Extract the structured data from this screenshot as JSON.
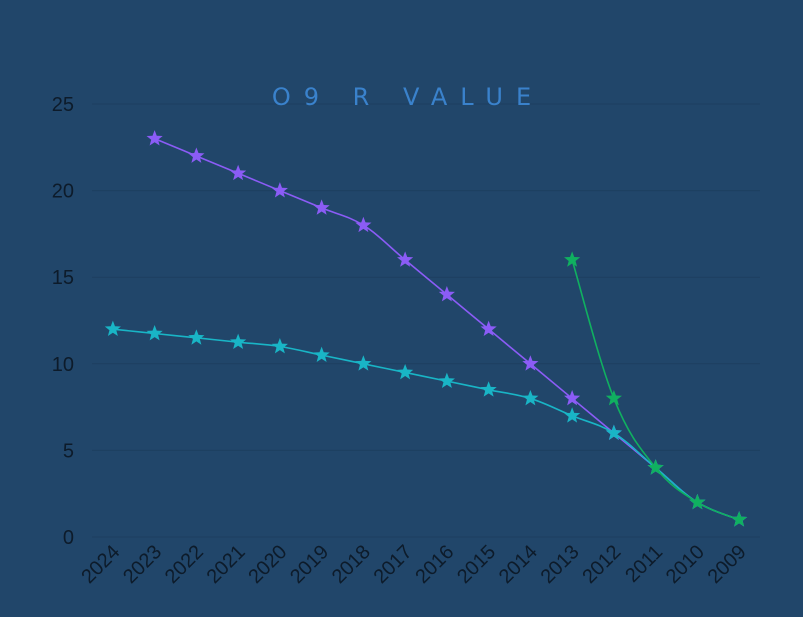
{
  "chart_data": {
    "type": "line",
    "title": "O9 R VALUE",
    "xlabel": "",
    "ylabel": "",
    "categories": [
      "2024",
      "2023",
      "2022",
      "2021",
      "2020",
      "2019",
      "2018",
      "2017",
      "2016",
      "2015",
      "2014",
      "2013",
      "2012",
      "2011",
      "2010",
      "2009"
    ],
    "ylim": [
      0,
      25
    ],
    "yticks": [
      0,
      5,
      10,
      15,
      20,
      25
    ],
    "grid": true,
    "legend": "none",
    "marker": "star",
    "series": [
      {
        "color": "#8b5cf6",
        "values": [
          null,
          23,
          22,
          21,
          20,
          19,
          18,
          16,
          14,
          12,
          10,
          8,
          6,
          4,
          2,
          1
        ]
      },
      {
        "color": "#19b5c6",
        "values": [
          12,
          11.75,
          11.5,
          11.25,
          11,
          10.5,
          10,
          9.5,
          9,
          8.5,
          8,
          7,
          6,
          4,
          2,
          1
        ]
      },
      {
        "color": "#10b060",
        "values": [
          null,
          null,
          null,
          null,
          null,
          null,
          null,
          null,
          null,
          null,
          null,
          16,
          8,
          4,
          2,
          1
        ]
      }
    ]
  }
}
